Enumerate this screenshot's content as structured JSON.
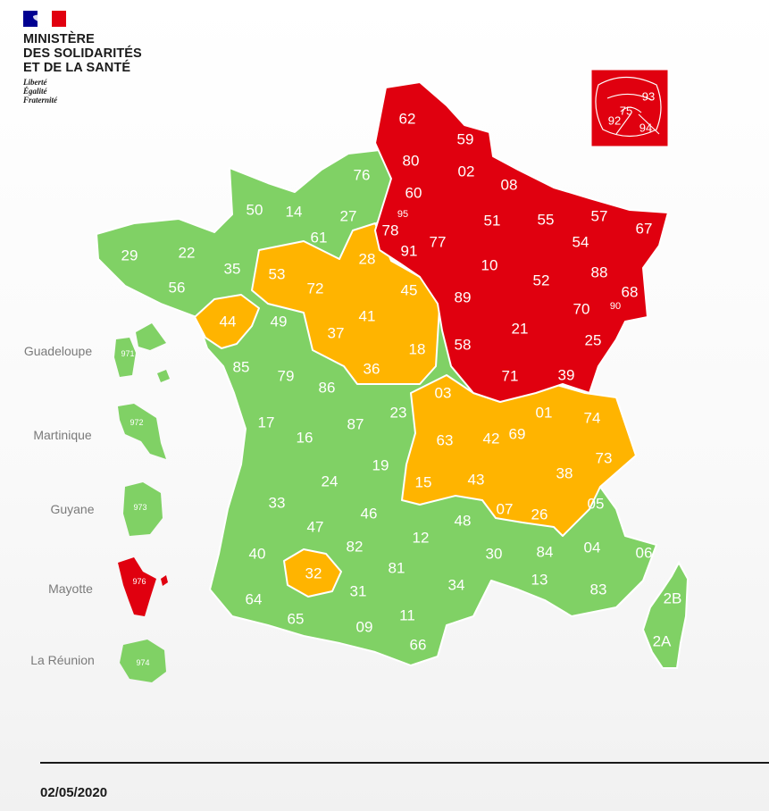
{
  "header": {
    "ministry_lines": [
      "MINISTÈRE",
      "DES SOLIDARITÉS",
      "ET DE LA SANTÉ"
    ],
    "motto_lines": [
      "Liberté",
      "Égalité",
      "Fraternité"
    ]
  },
  "colors": {
    "red": "#e0000f",
    "orange": "#ffb400",
    "green": "#80d165"
  },
  "paris_inset": [
    {
      "code": "93",
      "color": "red"
    },
    {
      "code": "75",
      "color": "red"
    },
    {
      "code": "92",
      "color": "red"
    },
    {
      "code": "94",
      "color": "red"
    }
  ],
  "overseas": [
    {
      "name": "Guadeloupe",
      "code": "971",
      "color": "green"
    },
    {
      "name": "Martinique",
      "code": "972",
      "color": "green"
    },
    {
      "name": "Guyane",
      "code": "973",
      "color": "green"
    },
    {
      "name": "Mayotte",
      "code": "976",
      "color": "red"
    },
    {
      "name": "La Réunion",
      "code": "974",
      "color": "green"
    }
  ],
  "departments": [
    {
      "code": "62",
      "color": "red"
    },
    {
      "code": "59",
      "color": "red"
    },
    {
      "code": "80",
      "color": "red"
    },
    {
      "code": "02",
      "color": "red"
    },
    {
      "code": "60",
      "color": "red"
    },
    {
      "code": "08",
      "color": "red"
    },
    {
      "code": "95",
      "color": "red"
    },
    {
      "code": "78",
      "color": "red"
    },
    {
      "code": "91",
      "color": "red"
    },
    {
      "code": "77",
      "color": "red"
    },
    {
      "code": "51",
      "color": "red"
    },
    {
      "code": "55",
      "color": "red"
    },
    {
      "code": "57",
      "color": "red"
    },
    {
      "code": "67",
      "color": "red"
    },
    {
      "code": "54",
      "color": "red"
    },
    {
      "code": "10",
      "color": "red"
    },
    {
      "code": "52",
      "color": "red"
    },
    {
      "code": "88",
      "color": "red"
    },
    {
      "code": "68",
      "color": "red"
    },
    {
      "code": "89",
      "color": "red"
    },
    {
      "code": "70",
      "color": "red"
    },
    {
      "code": "90",
      "color": "red"
    },
    {
      "code": "21",
      "color": "red"
    },
    {
      "code": "58",
      "color": "red"
    },
    {
      "code": "25",
      "color": "red"
    },
    {
      "code": "71",
      "color": "red"
    },
    {
      "code": "39",
      "color": "red"
    },
    {
      "code": "76",
      "color": "green"
    },
    {
      "code": "50",
      "color": "green"
    },
    {
      "code": "14",
      "color": "green"
    },
    {
      "code": "27",
      "color": "green"
    },
    {
      "code": "61",
      "color": "green"
    },
    {
      "code": "29",
      "color": "green"
    },
    {
      "code": "22",
      "color": "green"
    },
    {
      "code": "35",
      "color": "green"
    },
    {
      "code": "56",
      "color": "green"
    },
    {
      "code": "49",
      "color": "green"
    },
    {
      "code": "85",
      "color": "green"
    },
    {
      "code": "79",
      "color": "green"
    },
    {
      "code": "86",
      "color": "green"
    },
    {
      "code": "87",
      "color": "green"
    },
    {
      "code": "23",
      "color": "green"
    },
    {
      "code": "17",
      "color": "green"
    },
    {
      "code": "16",
      "color": "green"
    },
    {
      "code": "24",
      "color": "green"
    },
    {
      "code": "19",
      "color": "green"
    },
    {
      "code": "33",
      "color": "green"
    },
    {
      "code": "47",
      "color": "green"
    },
    {
      "code": "46",
      "color": "green"
    },
    {
      "code": "40",
      "color": "green"
    },
    {
      "code": "82",
      "color": "green"
    },
    {
      "code": "12",
      "color": "green"
    },
    {
      "code": "48",
      "color": "green"
    },
    {
      "code": "30",
      "color": "green"
    },
    {
      "code": "84",
      "color": "green"
    },
    {
      "code": "04",
      "color": "green"
    },
    {
      "code": "05",
      "color": "green"
    },
    {
      "code": "06",
      "color": "green"
    },
    {
      "code": "81",
      "color": "green"
    },
    {
      "code": "34",
      "color": "green"
    },
    {
      "code": "13",
      "color": "green"
    },
    {
      "code": "83",
      "color": "green"
    },
    {
      "code": "64",
      "color": "green"
    },
    {
      "code": "31",
      "color": "green"
    },
    {
      "code": "65",
      "color": "green"
    },
    {
      "code": "09",
      "color": "green"
    },
    {
      "code": "11",
      "color": "green"
    },
    {
      "code": "66",
      "color": "green"
    },
    {
      "code": "2B",
      "color": "green"
    },
    {
      "code": "2A",
      "color": "green"
    },
    {
      "code": "53",
      "color": "orange"
    },
    {
      "code": "72",
      "color": "orange"
    },
    {
      "code": "28",
      "color": "orange"
    },
    {
      "code": "45",
      "color": "orange"
    },
    {
      "code": "44",
      "color": "orange"
    },
    {
      "code": "41",
      "color": "orange"
    },
    {
      "code": "37",
      "color": "orange"
    },
    {
      "code": "18",
      "color": "orange"
    },
    {
      "code": "36",
      "color": "orange"
    },
    {
      "code": "03",
      "color": "orange"
    },
    {
      "code": "01",
      "color": "orange"
    },
    {
      "code": "74",
      "color": "orange"
    },
    {
      "code": "63",
      "color": "orange"
    },
    {
      "code": "42",
      "color": "orange"
    },
    {
      "code": "69",
      "color": "orange"
    },
    {
      "code": "73",
      "color": "orange"
    },
    {
      "code": "38",
      "color": "orange"
    },
    {
      "code": "15",
      "color": "orange"
    },
    {
      "code": "43",
      "color": "orange"
    },
    {
      "code": "07",
      "color": "orange"
    },
    {
      "code": "26",
      "color": "orange"
    },
    {
      "code": "32",
      "color": "orange"
    }
  ],
  "footer": {
    "date": "02/05/2020"
  }
}
